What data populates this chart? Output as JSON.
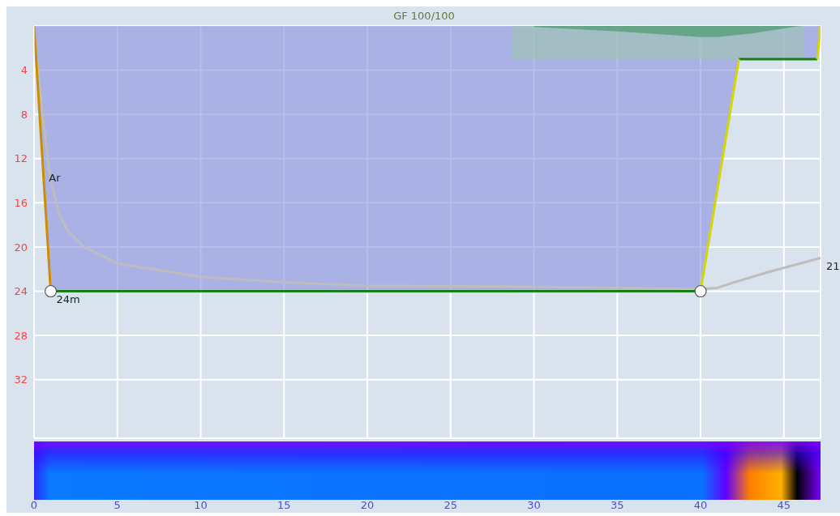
{
  "chart_data": {
    "type": "line",
    "title": "GF 100/100",
    "xlim": [
      0,
      47.2
    ],
    "xticks": [
      0,
      5,
      10,
      15,
      20,
      25,
      30,
      35,
      40,
      45
    ],
    "ylim": [
      37.3,
      0
    ],
    "yticks": [
      4,
      8,
      12,
      16,
      20,
      24,
      28,
      32
    ],
    "grid": true,
    "series": [
      {
        "type": "area",
        "color": "#8a90e0",
        "x": [
          0,
          1,
          40,
          42.3,
          47,
          47.2
        ],
        "values": [
          0,
          24,
          24,
          3,
          3,
          0
        ]
      },
      {
        "type": "area",
        "color": "#9cc4ac",
        "x": [
          28.7,
          46.2
        ],
        "values": [
          3,
          3
        ]
      },
      {
        "type": "area",
        "color": "#3e9460",
        "x": [
          30,
          35,
          40,
          41,
          43,
          46
        ],
        "values": [
          0.1,
          0.5,
          1,
          1,
          0.7,
          0
        ]
      },
      {
        "color": "#bdbdbd",
        "x": [
          0.2,
          0.5,
          1,
          1.5,
          2,
          3,
          5,
          10,
          15,
          20,
          30,
          40,
          41,
          42,
          44,
          47.2
        ],
        "values": [
          3,
          8,
          14,
          17,
          18.5,
          20,
          21.5,
          22.7,
          23.2,
          23.5,
          23.6,
          23.8,
          23.7,
          23.2,
          22.3,
          21
        ]
      },
      {
        "color": "#d08c00",
        "x": [
          0,
          1
        ],
        "values": [
          0,
          24
        ]
      },
      {
        "color": "#1a7d1a",
        "x": [
          1,
          40,
          41,
          42.3,
          47
        ],
        "values": [
          24,
          24,
          null,
          3,
          3
        ]
      },
      {
        "color": "#d6d600",
        "x": [
          40,
          42.3,
          45,
          47,
          47.2
        ],
        "values": [
          24,
          3,
          null,
          3,
          0
        ]
      },
      {
        "type": "scatter",
        "color": "#ffffff",
        "x": [
          1,
          40
        ],
        "values": [
          24,
          24
        ],
        "marker": "circle"
      }
    ],
    "annotations": [
      {
        "text": "Ar",
        "x": 0.55,
        "y": 13
      },
      {
        "text": "24m",
        "x": 1,
        "y": 24
      },
      {
        "text": "21",
        "x": 47.2,
        "y": 21
      }
    ]
  }
}
